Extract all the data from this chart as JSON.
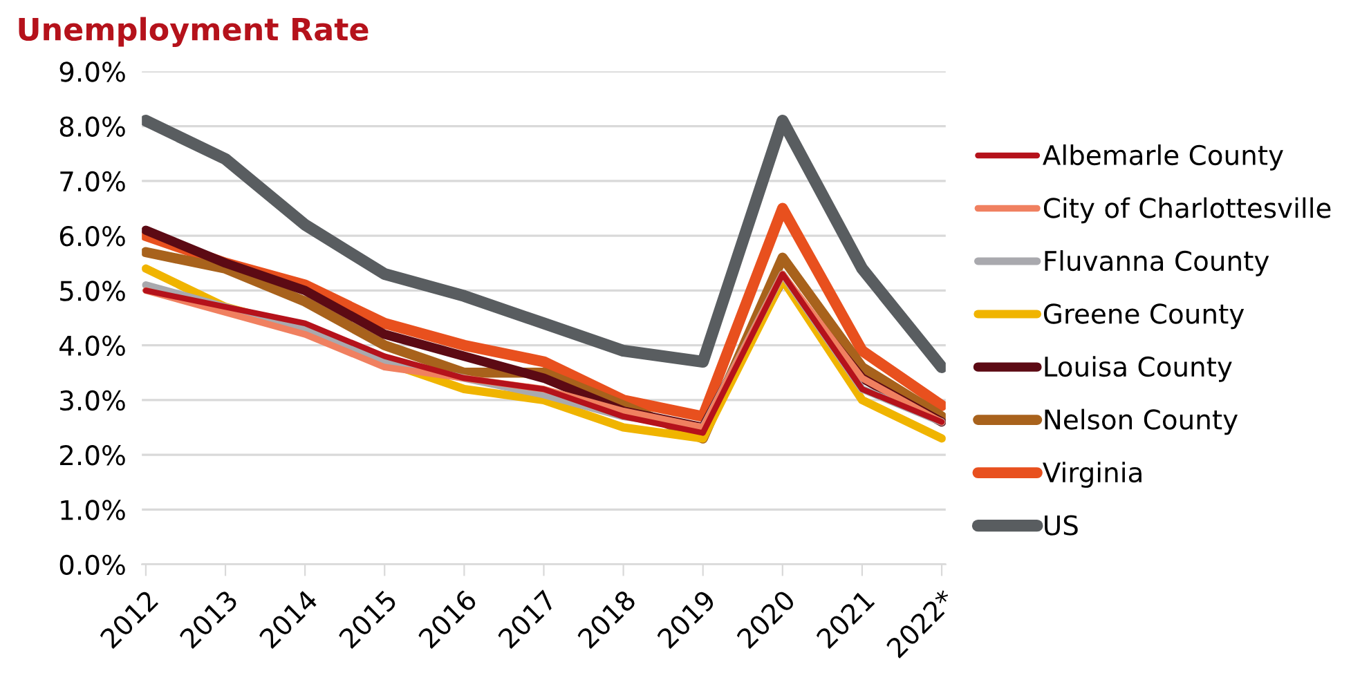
{
  "chart_data": {
    "type": "line",
    "title": "Unemployment Rate",
    "categories": [
      "2012",
      "2013",
      "2014",
      "2015",
      "2016",
      "2017",
      "2018",
      "2019",
      "2020",
      "2021",
      "2022*"
    ],
    "series": [
      {
        "name": "Albemarle County",
        "color": "#b5121b",
        "values": [
          5.0,
          4.7,
          4.4,
          3.8,
          3.4,
          3.2,
          2.7,
          2.4,
          5.3,
          3.2,
          2.6
        ]
      },
      {
        "name": "City of Charlottesville",
        "color": "#f08060",
        "values": [
          5.0,
          4.6,
          4.2,
          3.6,
          3.4,
          3.2,
          2.8,
          2.5,
          5.3,
          3.4,
          2.6
        ]
      },
      {
        "name": "Fluvanna County",
        "color": "#a9a9ae",
        "values": [
          5.1,
          4.7,
          4.3,
          3.7,
          3.4,
          3.1,
          2.7,
          2.5,
          5.3,
          3.2,
          2.6
        ]
      },
      {
        "name": "Greene County",
        "color": "#f0b400",
        "values": [
          5.4,
          4.7,
          4.3,
          3.7,
          3.2,
          3.0,
          2.5,
          2.3,
          5.2,
          3.0,
          2.3
        ]
      },
      {
        "name": "Louisa County",
        "color": "#5c0a14",
        "values": [
          6.1,
          5.5,
          5.0,
          4.2,
          3.8,
          3.4,
          2.8,
          2.5,
          5.2,
          3.4,
          2.6
        ]
      },
      {
        "name": "Nelson County",
        "color": "#a8621c",
        "values": [
          5.7,
          5.4,
          4.8,
          4.0,
          3.5,
          3.5,
          2.9,
          2.3,
          5.6,
          3.6,
          2.7
        ]
      },
      {
        "name": "Virginia",
        "color": "#e8501e",
        "values": [
          6.0,
          5.5,
          5.1,
          4.4,
          4.0,
          3.7,
          3.0,
          2.7,
          6.5,
          3.9,
          2.9
        ]
      },
      {
        "name": "US",
        "color": "#595d60",
        "values": [
          8.1,
          7.4,
          6.2,
          5.3,
          4.9,
          4.4,
          3.9,
          3.7,
          8.1,
          5.4,
          3.6
        ]
      }
    ],
    "ylim": [
      0,
      9
    ],
    "yticks": [
      {
        "value": 0,
        "label": "0.0%"
      },
      {
        "value": 1,
        "label": "1.0%"
      },
      {
        "value": 2,
        "label": "2.0%"
      },
      {
        "value": 3,
        "label": "3.0%"
      },
      {
        "value": 4,
        "label": "4.0%"
      },
      {
        "value": 5,
        "label": "5.0%"
      },
      {
        "value": 6,
        "label": "6.0%"
      },
      {
        "value": 7,
        "label": "7.0%"
      },
      {
        "value": 8,
        "label": "8.0%"
      },
      {
        "value": 9,
        "label": "9.0%"
      }
    ],
    "grid": "y",
    "legend": "right",
    "marker": "none",
    "line_style": "solid"
  }
}
